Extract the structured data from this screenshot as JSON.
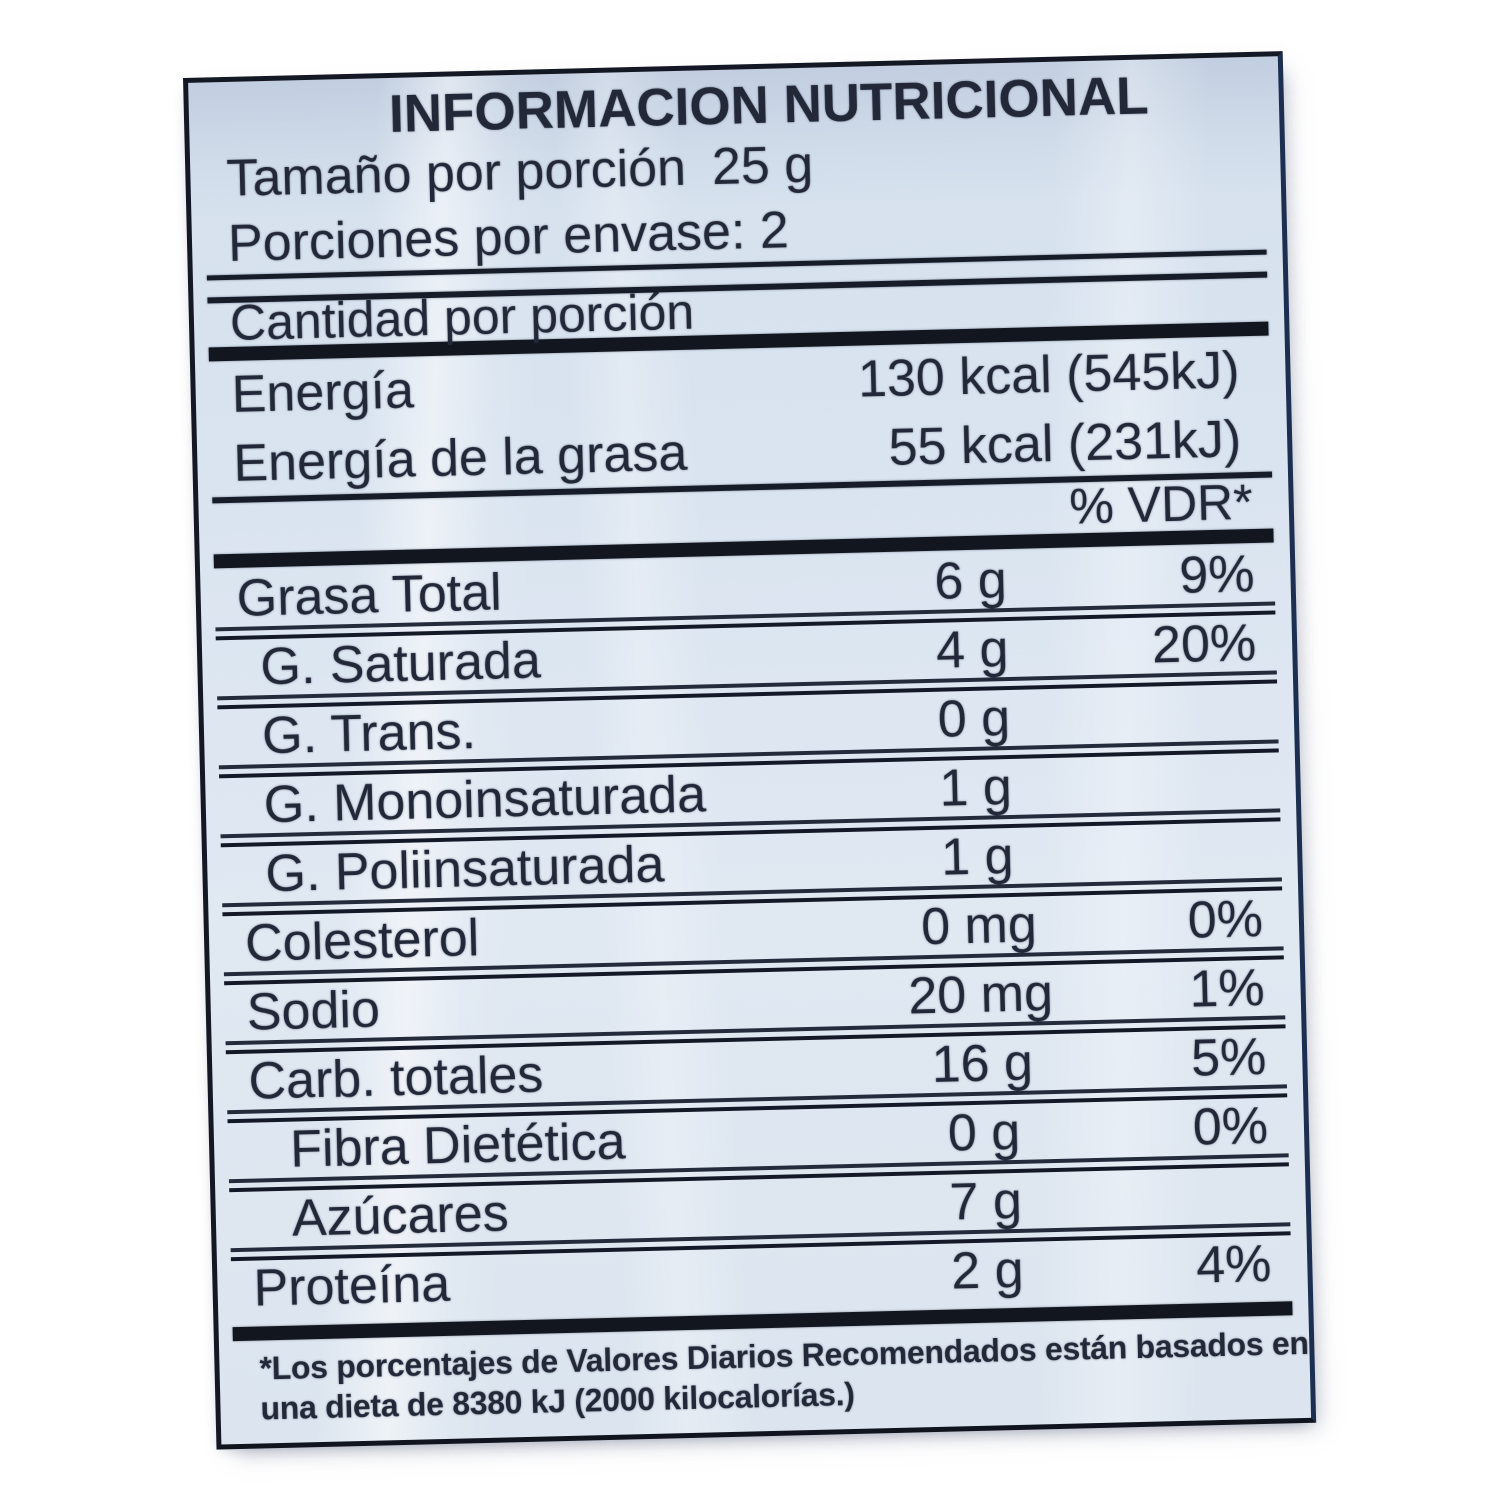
{
  "title": "INFORMACION NUTRICIONAL",
  "serving": {
    "size_label": "Tamaño por porción",
    "size_value": "25 g",
    "per_container": "Porciones por envase: 2"
  },
  "amount_header": "Cantidad por porción",
  "energy_rows": [
    {
      "label": "Energía",
      "value": "130 kcal (545kJ)"
    },
    {
      "label": "Energía de la grasa",
      "value": "55 kcal (231kJ)"
    }
  ],
  "vdr_header": "% VDR*",
  "nutrient_rows": [
    {
      "label": "Grasa Total",
      "amount": "6 g",
      "dv": "9%",
      "indent": 0
    },
    {
      "label": "G. Saturada",
      "amount": "4 g",
      "dv": "20%",
      "indent": 1
    },
    {
      "label": "G. Trans.",
      "amount": "0 g",
      "dv": "",
      "indent": 1
    },
    {
      "label": "G. Monoinsaturada",
      "amount": "1 g",
      "dv": "",
      "indent": 1
    },
    {
      "label": "G. Poliinsaturada",
      "amount": "1 g",
      "dv": "",
      "indent": 1
    },
    {
      "label": "Colesterol",
      "amount": "0 mg",
      "dv": "0%",
      "indent": 0
    },
    {
      "label": "Sodio",
      "amount": "20 mg",
      "dv": "1%",
      "indent": 0
    },
    {
      "label": "Carb. totales",
      "amount": "16 g",
      "dv": "5%",
      "indent": 0
    },
    {
      "label": "Fibra Dietética",
      "amount": "0 g",
      "dv": "0%",
      "indent": 2
    },
    {
      "label": "Azúcares",
      "amount": "7 g",
      "dv": "",
      "indent": 2
    },
    {
      "label": "Proteína",
      "amount": "2 g",
      "dv": "4%",
      "indent": 0
    }
  ],
  "footnote": {
    "line1": "*Los porcentajes de Valores Diarios Recomendados están basados en",
    "line2": "una dieta de 8380 kJ (2000 kilocalorías.)"
  },
  "colors": {
    "paper": "#dae4f0",
    "ink": "#222838",
    "rule": "#171c29",
    "border": "#141824",
    "page_background": "#ffffff"
  }
}
